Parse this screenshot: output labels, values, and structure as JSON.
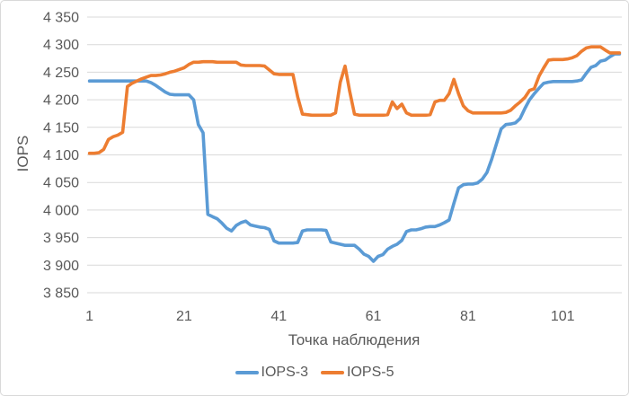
{
  "chart_data": {
    "type": "line",
    "xlabel": "Точка наблюдения",
    "ylabel": "IOPS",
    "ylim": [
      3850,
      4350
    ],
    "ytick_step": 50,
    "x_ticks": [
      1,
      21,
      41,
      61,
      81,
      101
    ],
    "grid": true,
    "legend_position": "bottom",
    "gridline_color": "#d9d9d9",
    "text_color": "#595959",
    "series": [
      {
        "name": "IOPS-3",
        "color": "#5B9BD5",
        "values": [
          4234,
          4234,
          4234,
          4234,
          4234,
          4234,
          4234,
          4234,
          4234,
          4234,
          4234,
          4234,
          4234,
          4231,
          4226,
          4220,
          4214,
          4210,
          4209,
          4209,
          4209,
          4209,
          4200,
          4155,
          4140,
          3992,
          3988,
          3984,
          3976,
          3967,
          3962,
          3972,
          3977,
          3980,
          3973,
          3971,
          3969,
          3968,
          3965,
          3944,
          3940,
          3940,
          3940,
          3940,
          3941,
          3962,
          3964,
          3964,
          3964,
          3964,
          3963,
          3942,
          3940,
          3938,
          3936,
          3936,
          3936,
          3929,
          3920,
          3916,
          3907,
          3916,
          3919,
          3929,
          3934,
          3938,
          3945,
          3961,
          3964,
          3964,
          3966,
          3969,
          3970,
          3970,
          3973,
          3977,
          3982,
          4012,
          4040,
          4046,
          4047,
          4047,
          4049,
          4056,
          4068,
          4092,
          4120,
          4147,
          4155,
          4156,
          4158,
          4166,
          4184,
          4200,
          4211,
          4221,
          4230,
          4232,
          4233,
          4233,
          4233,
          4233,
          4233,
          4234,
          4236,
          4248,
          4259,
          4262,
          4270,
          4272,
          4278,
          4283,
          4283
        ]
      },
      {
        "name": "IOPS-5",
        "color": "#ED7D31",
        "values": [
          4103,
          4103,
          4104,
          4110,
          4128,
          4133,
          4136,
          4141,
          4224,
          4230,
          4234,
          4238,
          4241,
          4244,
          4244,
          4245,
          4247,
          4250,
          4252,
          4255,
          4258,
          4264,
          4268,
          4268,
          4269,
          4269,
          4269,
          4268,
          4268,
          4268,
          4268,
          4268,
          4263,
          4262,
          4262,
          4262,
          4262,
          4261,
          4254,
          4247,
          4246,
          4246,
          4246,
          4246,
          4205,
          4174,
          4173,
          4172,
          4172,
          4172,
          4172,
          4172,
          4176,
          4232,
          4261,
          4215,
          4174,
          4172,
          4172,
          4172,
          4172,
          4172,
          4172,
          4173,
          4196,
          4184,
          4192,
          4176,
          4172,
          4172,
          4172,
          4172,
          4173,
          4196,
          4199,
          4199,
          4211,
          4237,
          4211,
          4189,
          4180,
          4176,
          4176,
          4176,
          4176,
          4176,
          4176,
          4176,
          4177,
          4181,
          4189,
          4196,
          4204,
          4217,
          4220,
          4243,
          4258,
          4272,
          4273,
          4273,
          4273,
          4274,
          4276,
          4280,
          4288,
          4294,
          4296,
          4296,
          4296,
          4290,
          4285,
          4285,
          4285
        ]
      }
    ]
  }
}
